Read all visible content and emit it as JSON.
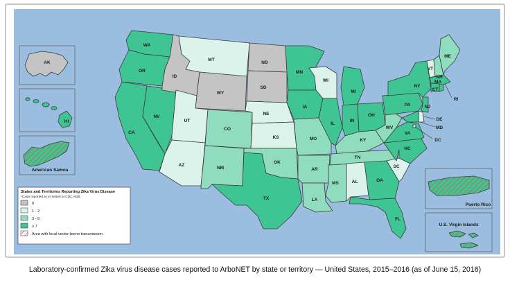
{
  "colors": {
    "ocean": "#9bbde0",
    "none": "#c4c4c4",
    "low": "#dcf3ec",
    "mid": "#8fdcbf",
    "high": "#3fc593",
    "hatch": "#e2503c",
    "border": "#3a3a3a",
    "frame": "#8c8c8c"
  },
  "legend": {
    "title": "States and Territories Reporting Zika Virus Disease",
    "note": "*Case reported to or tested at CDC ADB",
    "items": [
      {
        "label": "0",
        "color": "#c4c4c4",
        "pattern": "solid"
      },
      {
        "label": "1 - 2",
        "color": "#dcf3ec",
        "pattern": "solid"
      },
      {
        "label": "3 - 6",
        "color": "#8fdcbf",
        "pattern": "solid"
      },
      {
        "label": "≥ 7",
        "color": "#3fc593",
        "pattern": "solid"
      },
      {
        "label": "Area with local vector-borne transmission",
        "color": "#ffffff",
        "pattern": "hatch"
      }
    ]
  },
  "insets": {
    "ak": "AK",
    "hi": "HI",
    "samoa": "American Samoa",
    "pr": "Puerto Rico",
    "vi": "U.S. Virgin Islands"
  },
  "states": {
    "WA": "high",
    "OR": "high",
    "CA": "high",
    "NV": "high",
    "ID": "none",
    "MT": "low",
    "WY": "none",
    "UT": "low",
    "AZ": "low",
    "CO": "mid",
    "NM": "mid",
    "ND": "none",
    "SD": "none",
    "NE": "low",
    "KS": "low",
    "OK": "mid",
    "TX": "high",
    "MN": "high",
    "IA": "high",
    "MO": "mid",
    "AR": "mid",
    "LA": "mid",
    "WI": "low",
    "IL": "high",
    "MS": "mid",
    "MI": "high",
    "IN": "high",
    "KY": "mid",
    "TN": "mid",
    "AL": "low",
    "OH": "high",
    "GA": "high",
    "FL": "high",
    "SC": "low",
    "NC": "high",
    "VA": "high",
    "WV": "mid",
    "PA": "high",
    "NY": "high",
    "VT": "low",
    "NH": "mid",
    "ME": "mid",
    "MA": "high",
    "CT": "high",
    "RI": "high",
    "NJ": "high",
    "DE": "low",
    "MD": "high",
    "DC": "low"
  },
  "labels": {
    "WA": "WA",
    "OR": "OR",
    "CA": "CA",
    "NV": "NV",
    "ID": "ID",
    "MT": "MT",
    "WY": "WY",
    "UT": "UT",
    "AZ": "AZ",
    "CO": "CO",
    "NM": "NM",
    "ND": "ND",
    "SD": "SD",
    "NE": "NE",
    "KS": "KS",
    "OK": "OK",
    "TX": "TX",
    "MN": "MN",
    "IA": "IA",
    "MO": "MO",
    "AR": "AR",
    "LA": "LA",
    "WI": "WI",
    "IL": "IL",
    "MS": "MS",
    "MI": "MI",
    "IN": "IN",
    "KY": "KY",
    "TN": "TN",
    "AL": "AL",
    "OH": "OH",
    "GA": "GA",
    "FL": "FL",
    "SC": "SC",
    "NC": "NC",
    "VA": "VA",
    "WV": "WV",
    "PA": "PA",
    "NY": "NY",
    "VT": "VT",
    "NH": "NH",
    "ME": "ME",
    "MA": "MA",
    "CT": "CT",
    "RI": "RI",
    "NJ": "NJ",
    "DE": "DE",
    "MD": "MD",
    "DC": "DC"
  },
  "caption": "Laboratory-confirmed Zika virus disease cases reported to ArboNET by state or territory — United States, 2015–2016 (as of June 15, 2016)"
}
